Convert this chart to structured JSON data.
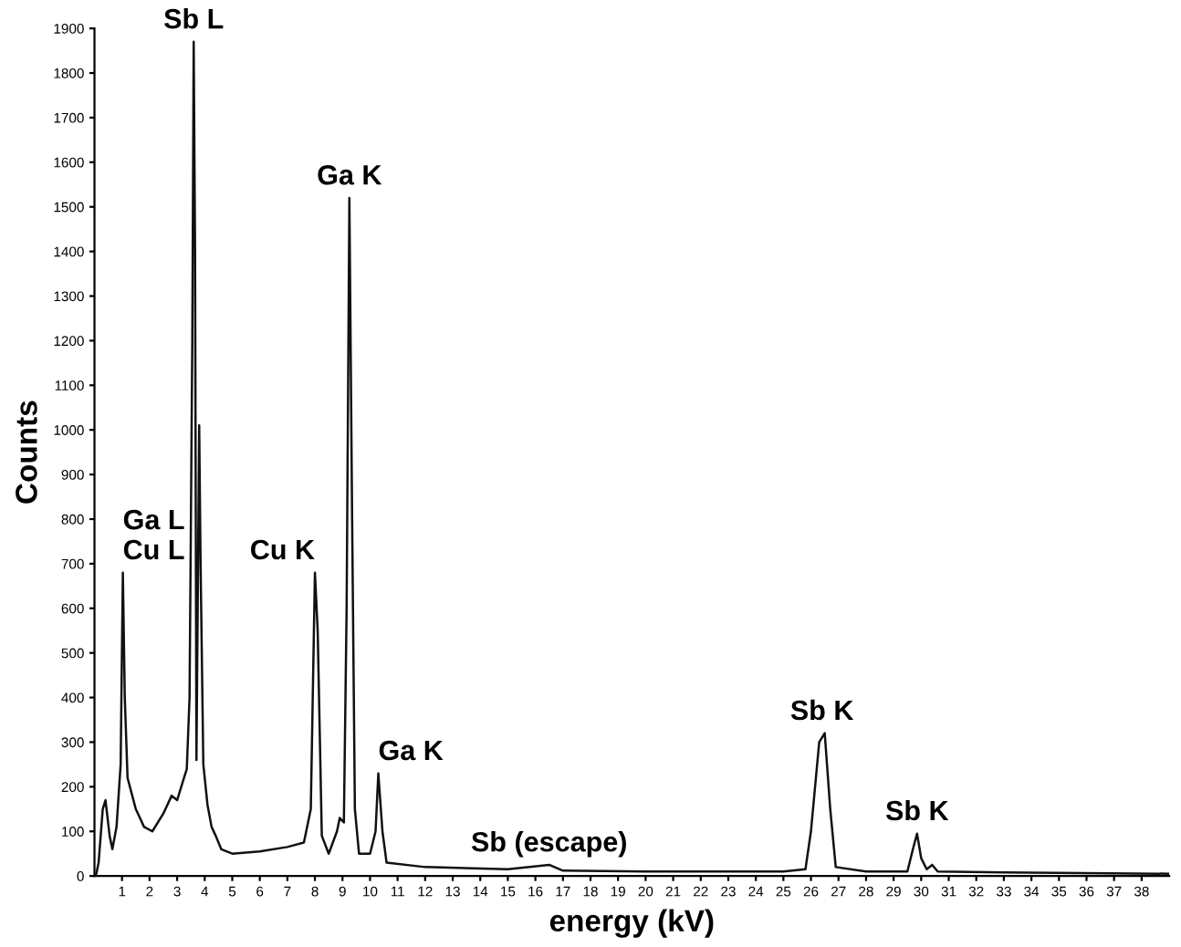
{
  "chart_data": {
    "type": "line",
    "xlabel": "energy (kV)",
    "ylabel": "Counts",
    "x": [
      0.05,
      0.15,
      0.3,
      0.4,
      0.55,
      0.65,
      0.8,
      0.95,
      1.03,
      1.1,
      1.2,
      1.5,
      1.8,
      2.1,
      2.5,
      2.8,
      3.0,
      3.2,
      3.35,
      3.45,
      3.55,
      3.6,
      3.65,
      3.7,
      3.8,
      3.85,
      3.95,
      4.1,
      4.25,
      4.4,
      4.6,
      5,
      6,
      7,
      7.6,
      7.85,
      8.0,
      8.1,
      8.25,
      8.5,
      8.8,
      8.9,
      9.05,
      9.15,
      9.25,
      9.35,
      9.45,
      9.6,
      10.0,
      10.2,
      10.3,
      10.45,
      10.6,
      12,
      15,
      16.5,
      17,
      20,
      25,
      25.8,
      26.0,
      26.3,
      26.5,
      26.7,
      26.9,
      28,
      29.5,
      29.7,
      29.85,
      30.0,
      30.2,
      30.4,
      30.6,
      33,
      39
    ],
    "series": [
      {
        "color": "#111111",
        "values": [
          0,
          30,
          150,
          170,
          90,
          60,
          110,
          250,
          680,
          400,
          220,
          150,
          110,
          100,
          140,
          180,
          170,
          210,
          240,
          400,
          1200,
          1870,
          1400,
          260,
          1010,
          700,
          250,
          160,
          110,
          90,
          60,
          50,
          55,
          65,
          75,
          150,
          680,
          550,
          90,
          50,
          100,
          130,
          120,
          600,
          1520,
          800,
          150,
          50,
          50,
          100,
          230,
          100,
          30,
          20,
          15,
          25,
          12,
          10,
          10,
          15,
          100,
          300,
          320,
          150,
          20,
          10,
          10,
          60,
          95,
          40,
          15,
          25,
          10,
          8,
          5
        ]
      }
    ],
    "xlim": [
      0,
      39
    ],
    "xticks": [
      1,
      2,
      3,
      4,
      5,
      6,
      7,
      8,
      9,
      10,
      11,
      12,
      13,
      14,
      15,
      16,
      17,
      18,
      19,
      20,
      21,
      22,
      23,
      24,
      25,
      26,
      27,
      28,
      29,
      30,
      31,
      32,
      33,
      34,
      35,
      36,
      37,
      38
    ],
    "ylim": [
      0,
      1900
    ],
    "yticks": [
      0,
      100,
      200,
      300,
      400,
      500,
      600,
      700,
      800,
      900,
      1000,
      1100,
      1200,
      1300,
      1400,
      1500,
      1600,
      1700,
      1800,
      1900
    ],
    "grid": false,
    "legend": false,
    "marker": "none",
    "line_style": "solid",
    "annotations": [
      {
        "text": "Sb L",
        "x": 3.6,
        "y": 1870
      },
      {
        "text": "Ga K",
        "x": 9.25,
        "y": 1520
      },
      {
        "text": "Ga L\nCu L",
        "x": 1.03,
        "y": 680
      },
      {
        "text": "Cu K",
        "x": 8.0,
        "y": 680
      },
      {
        "text": "Ga K",
        "x": 10.3,
        "y": 230
      },
      {
        "text": "Sb (escape)",
        "x": 16.5,
        "y": 25
      },
      {
        "text": "Sb K",
        "x": 26.4,
        "y": 320
      },
      {
        "text": "Sb K",
        "x": 29.85,
        "y": 95
      }
    ]
  }
}
